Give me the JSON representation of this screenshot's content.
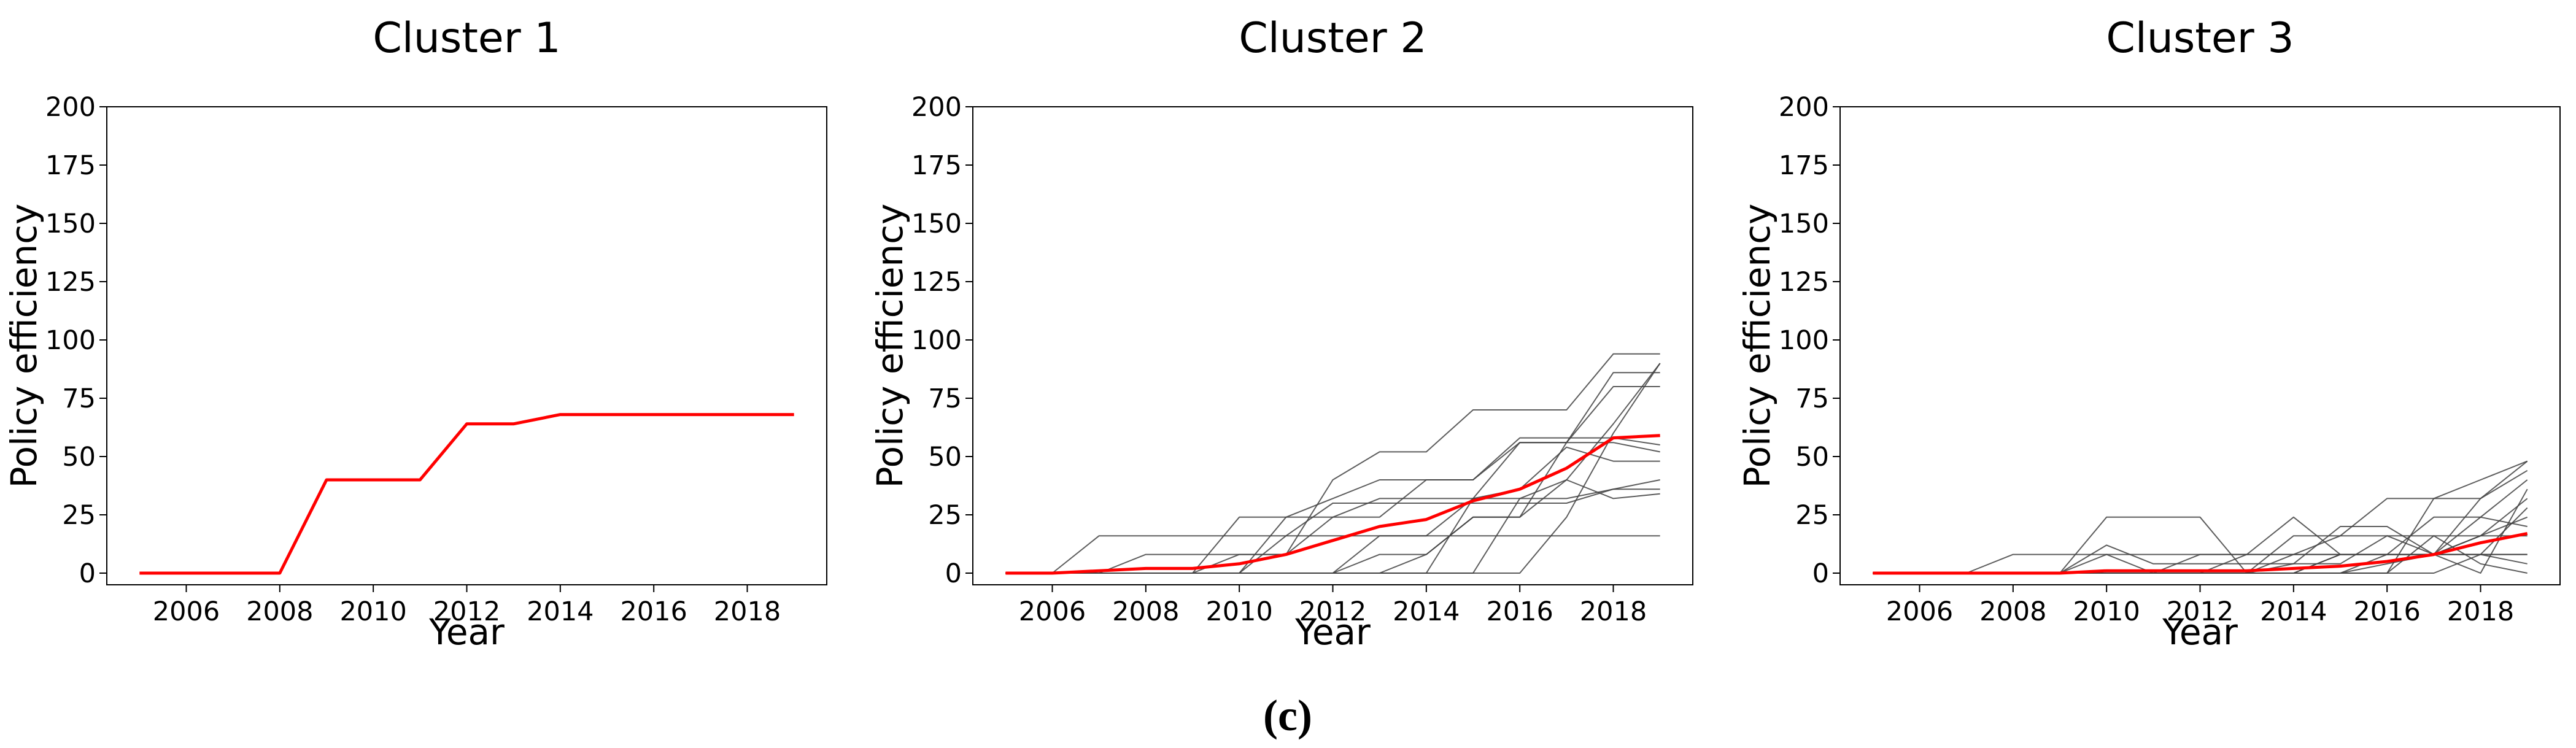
{
  "chart_data": [
    {
      "type": "line",
      "title": "Cluster 1",
      "xlabel": "Year",
      "ylabel": "Policy efficiency",
      "x": [
        2005,
        2006,
        2007,
        2008,
        2009,
        2010,
        2011,
        2012,
        2013,
        2014,
        2015,
        2016,
        2017,
        2018,
        2019
      ],
      "xlim": [
        2004.3,
        2019.7
      ],
      "ylim": [
        -5,
        200
      ],
      "xticks": [
        2006,
        2008,
        2010,
        2012,
        2014,
        2016,
        2018
      ],
      "yticks": [
        0,
        25,
        50,
        75,
        100,
        125,
        150,
        175,
        200
      ],
      "series": [
        {
          "color": "#ff0000",
          "values": [
            0,
            0,
            0,
            0,
            40,
            40,
            40,
            64,
            64,
            68,
            68,
            68,
            68,
            68,
            68
          ]
        }
      ]
    },
    {
      "type": "line",
      "title": "Cluster 2",
      "xlabel": "Year",
      "ylabel": "Policy efficiency",
      "x": [
        2005,
        2006,
        2007,
        2008,
        2009,
        2010,
        2011,
        2012,
        2013,
        2014,
        2015,
        2016,
        2017,
        2018,
        2019
      ],
      "xlim": [
        2004.3,
        2019.7
      ],
      "ylim": [
        -5,
        200
      ],
      "xticks": [
        2006,
        2008,
        2010,
        2012,
        2014,
        2016,
        2018
      ],
      "yticks": [
        0,
        25,
        50,
        75,
        100,
        125,
        150,
        175,
        200
      ],
      "series": [
        {
          "color": "#404040",
          "values": [
            0,
            0,
            16,
            16,
            16,
            16,
            16,
            16,
            16,
            16,
            16,
            16,
            16,
            16,
            16
          ]
        },
        {
          "color": "#404040",
          "values": [
            0,
            0,
            0,
            0,
            0,
            8,
            8,
            40,
            52,
            52,
            70,
            70,
            70,
            94,
            94
          ]
        },
        {
          "color": "#404040",
          "values": [
            0,
            0,
            0,
            0,
            0,
            0,
            24,
            24,
            24,
            40,
            40,
            56,
            56,
            56,
            52
          ]
        },
        {
          "color": "#404040",
          "values": [
            0,
            0,
            0,
            0,
            0,
            0,
            0,
            0,
            16,
            16,
            32,
            56,
            56,
            80,
            80
          ]
        },
        {
          "color": "#404040",
          "values": [
            0,
            0,
            0,
            0,
            0,
            0,
            0,
            0,
            0,
            8,
            24,
            24,
            56,
            86,
            86
          ]
        },
        {
          "color": "#404040",
          "values": [
            0,
            0,
            0,
            0,
            0,
            0,
            0,
            0,
            0,
            0,
            0,
            0,
            24,
            60,
            90
          ]
        },
        {
          "color": "#404040",
          "values": [
            0,
            0,
            0,
            8,
            8,
            8,
            8,
            24,
            32,
            32,
            32,
            32,
            32,
            36,
            40
          ]
        },
        {
          "color": "#404040",
          "values": [
            0,
            0,
            0,
            0,
            0,
            24,
            24,
            32,
            40,
            40,
            40,
            58,
            58,
            58,
            55
          ]
        },
        {
          "color": "#404040",
          "values": [
            0,
            0,
            0,
            0,
            0,
            0,
            0,
            0,
            0,
            0,
            32,
            36,
            54,
            48,
            48
          ]
        },
        {
          "color": "#404040",
          "values": [
            0,
            0,
            0,
            0,
            0,
            0,
            16,
            30,
            30,
            30,
            30,
            30,
            30,
            36,
            36
          ]
        },
        {
          "color": "#404040",
          "values": [
            0,
            0,
            0,
            0,
            0,
            0,
            0,
            0,
            8,
            8,
            24,
            24,
            40,
            64,
            90
          ]
        },
        {
          "color": "#404040",
          "values": [
            0,
            0,
            0,
            0,
            0,
            0,
            0,
            0,
            0,
            0,
            0,
            32,
            40,
            32,
            34
          ]
        },
        {
          "color": "#ff0000",
          "values": [
            0,
            0,
            1,
            2,
            2,
            4,
            8,
            14,
            20,
            23,
            31,
            36,
            45,
            58,
            59
          ]
        }
      ]
    },
    {
      "type": "line",
      "title": "Cluster 3",
      "xlabel": "Year",
      "ylabel": "Policy efficiency",
      "x": [
        2005,
        2006,
        2007,
        2008,
        2009,
        2010,
        2011,
        2012,
        2013,
        2014,
        2015,
        2016,
        2017,
        2018,
        2019
      ],
      "xlim": [
        2004.3,
        2019.7
      ],
      "ylim": [
        -5,
        200
      ],
      "xticks": [
        2006,
        2008,
        2010,
        2012,
        2014,
        2016,
        2018
      ],
      "yticks": [
        0,
        25,
        50,
        75,
        100,
        125,
        150,
        175,
        200
      ],
      "series": [
        {
          "color": "#404040",
          "values": [
            0,
            0,
            0,
            8,
            8,
            8,
            8,
            8,
            8,
            8,
            8,
            8,
            8,
            8,
            8
          ]
        },
        {
          "color": "#404040",
          "values": [
            0,
            0,
            0,
            0,
            0,
            24,
            24,
            24,
            0,
            0,
            8,
            8,
            8,
            8,
            8
          ]
        },
        {
          "color": "#404040",
          "values": [
            0,
            0,
            0,
            0,
            0,
            8,
            0,
            0,
            8,
            24,
            8,
            8,
            8,
            16,
            24
          ]
        },
        {
          "color": "#404040",
          "values": [
            0,
            0,
            0,
            0,
            0,
            0,
            0,
            0,
            0,
            0,
            0,
            0,
            32,
            32,
            48
          ]
        },
        {
          "color": "#404040",
          "values": [
            0,
            0,
            0,
            0,
            0,
            0,
            0,
            0,
            0,
            8,
            16,
            32,
            32,
            40,
            48
          ]
        },
        {
          "color": "#404040",
          "values": [
            0,
            0,
            0,
            0,
            0,
            12,
            4,
            4,
            4,
            4,
            20,
            20,
            8,
            0,
            36
          ]
        },
        {
          "color": "#404040",
          "values": [
            0,
            0,
            0,
            0,
            0,
            0,
            0,
            0,
            0,
            16,
            16,
            16,
            8,
            32,
            44
          ]
        },
        {
          "color": "#404040",
          "values": [
            0,
            0,
            0,
            0,
            0,
            0,
            0,
            0,
            0,
            0,
            0,
            8,
            24,
            24,
            40
          ]
        },
        {
          "color": "#404040",
          "values": [
            0,
            0,
            0,
            0,
            0,
            0,
            0,
            8,
            8,
            8,
            8,
            8,
            8,
            16,
            32
          ]
        },
        {
          "color": "#404040",
          "values": [
            0,
            0,
            0,
            0,
            0,
            0,
            0,
            0,
            0,
            0,
            0,
            0,
            0,
            8,
            28
          ]
        },
        {
          "color": "#404040",
          "values": [
            0,
            0,
            0,
            0,
            0,
            0,
            0,
            0,
            0,
            0,
            0,
            0,
            16,
            4,
            0
          ]
        },
        {
          "color": "#404040",
          "values": [
            0,
            0,
            0,
            0,
            0,
            0,
            0,
            0,
            0,
            0,
            8,
            8,
            8,
            24,
            20
          ]
        },
        {
          "color": "#404040",
          "values": [
            0,
            0,
            0,
            0,
            0,
            0,
            0,
            0,
            0,
            0,
            0,
            4,
            8,
            8,
            4
          ]
        },
        {
          "color": "#404040",
          "values": [
            0,
            0,
            0,
            0,
            0,
            0,
            0,
            0,
            0,
            4,
            4,
            16,
            16,
            16,
            16
          ]
        },
        {
          "color": "#ff0000",
          "values": [
            0,
            0,
            0,
            0,
            0,
            1,
            1,
            1,
            1,
            2,
            3,
            5,
            8,
            13,
            17
          ]
        }
      ]
    }
  ],
  "caption": "(c)"
}
